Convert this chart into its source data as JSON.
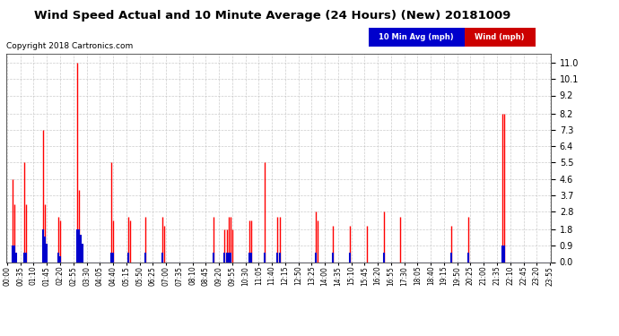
{
  "title": "Wind Speed Actual and 10 Minute Average (24 Hours) (New) 20181009",
  "copyright": "Copyright 2018 Cartronics.com",
  "legend_blue_label": "10 Min Avg (mph)",
  "legend_red_label": "Wind (mph)",
  "yticks": [
    0.0,
    0.9,
    1.8,
    2.8,
    3.7,
    4.6,
    5.5,
    6.4,
    7.3,
    8.2,
    9.2,
    10.1,
    11.0
  ],
  "ylim": [
    0.0,
    11.5
  ],
  "ymax_display": 11.0,
  "bg_color": "#ffffff",
  "plot_bg": "#ffffff",
  "grid_color": "#c0c0c0",
  "wind_color": "#ff0000",
  "avg_color": "#0000cc",
  "n_points": 288,
  "wind_spikes": [
    [
      3,
      4.6
    ],
    [
      4,
      3.2
    ],
    [
      9,
      5.5
    ],
    [
      10,
      3.2
    ],
    [
      19,
      7.3
    ],
    [
      20,
      3.2
    ],
    [
      27,
      2.5
    ],
    [
      28,
      2.3
    ],
    [
      37,
      11.0
    ],
    [
      38,
      4.0
    ],
    [
      55,
      5.5
    ],
    [
      56,
      2.3
    ],
    [
      64,
      2.5
    ],
    [
      65,
      2.3
    ],
    [
      73,
      2.5
    ],
    [
      82,
      2.5
    ],
    [
      83,
      2.0
    ],
    [
      109,
      2.5
    ],
    [
      115,
      1.8
    ],
    [
      116,
      1.8
    ],
    [
      117,
      2.5
    ],
    [
      118,
      2.5
    ],
    [
      119,
      1.8
    ],
    [
      128,
      2.3
    ],
    [
      129,
      2.3
    ],
    [
      136,
      5.5
    ],
    [
      143,
      2.5
    ],
    [
      144,
      2.5
    ],
    [
      163,
      2.8
    ],
    [
      164,
      2.3
    ],
    [
      172,
      2.0
    ],
    [
      181,
      2.0
    ],
    [
      190,
      2.0
    ],
    [
      199,
      2.8
    ],
    [
      208,
      2.5
    ],
    [
      235,
      2.0
    ],
    [
      244,
      2.5
    ],
    [
      262,
      8.2
    ],
    [
      263,
      8.2
    ]
  ],
  "avg_spikes": [
    [
      3,
      0.9
    ],
    [
      4,
      0.9
    ],
    [
      5,
      0.5
    ],
    [
      9,
      0.5
    ],
    [
      10,
      0.5
    ],
    [
      19,
      1.8
    ],
    [
      20,
      1.4
    ],
    [
      21,
      1.0
    ],
    [
      27,
      0.5
    ],
    [
      28,
      0.3
    ],
    [
      37,
      1.8
    ],
    [
      38,
      1.8
    ],
    [
      39,
      1.5
    ],
    [
      40,
      1.0
    ],
    [
      55,
      0.5
    ],
    [
      56,
      0.5
    ],
    [
      64,
      0.5
    ],
    [
      73,
      0.5
    ],
    [
      82,
      0.5
    ],
    [
      109,
      0.5
    ],
    [
      115,
      0.5
    ],
    [
      116,
      0.5
    ],
    [
      117,
      0.5
    ],
    [
      118,
      0.5
    ],
    [
      128,
      0.5
    ],
    [
      129,
      0.5
    ],
    [
      136,
      0.5
    ],
    [
      143,
      0.5
    ],
    [
      144,
      0.5
    ],
    [
      163,
      0.5
    ],
    [
      172,
      0.5
    ],
    [
      181,
      0.5
    ],
    [
      199,
      0.5
    ],
    [
      235,
      0.5
    ],
    [
      244,
      0.5
    ],
    [
      262,
      0.9
    ],
    [
      263,
      0.9
    ]
  ],
  "xtick_labels": [
    "00:00",
    "00:35",
    "01:10",
    "01:45",
    "02:20",
    "02:55",
    "03:30",
    "04:05",
    "04:40",
    "05:15",
    "05:50",
    "06:25",
    "07:00",
    "07:35",
    "08:10",
    "08:45",
    "09:20",
    "09:55",
    "10:30",
    "11:05",
    "11:40",
    "12:15",
    "12:50",
    "13:25",
    "14:00",
    "14:35",
    "15:10",
    "15:45",
    "16:20",
    "16:55",
    "17:30",
    "18:05",
    "18:40",
    "19:15",
    "19:50",
    "20:25",
    "21:00",
    "21:35",
    "22:10",
    "22:45",
    "23:20",
    "23:55"
  ],
  "xtick_positions": [
    0,
    7,
    14,
    21,
    28,
    35,
    42,
    49,
    56,
    63,
    70,
    77,
    84,
    91,
    98,
    105,
    112,
    119,
    126,
    133,
    140,
    147,
    154,
    161,
    168,
    175,
    182,
    189,
    196,
    203,
    210,
    217,
    224,
    231,
    238,
    245,
    252,
    259,
    266,
    273,
    280,
    287
  ]
}
